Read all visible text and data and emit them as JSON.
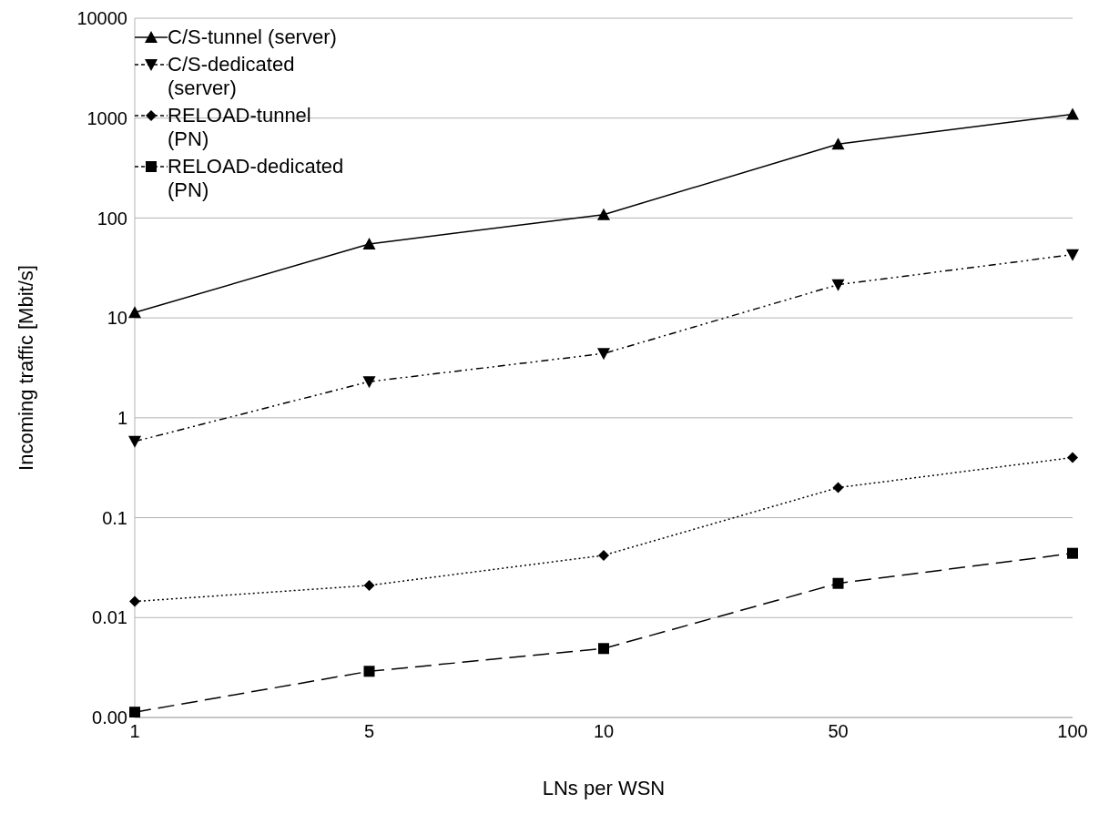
{
  "chart_data": {
    "type": "line",
    "xlabel": "LNs per WSN",
    "ylabel": "Incoming traffic [Mbit/s]",
    "categories": [
      "1",
      "5",
      "10",
      "50",
      "100"
    ],
    "series": [
      {
        "name": "C/S-tunnel (server)",
        "color": "#000000",
        "marker": "triangle",
        "line_style": "solid",
        "values": [
          11.3,
          55,
          108,
          550,
          1090
        ]
      },
      {
        "name": "C/S-dedicated (server)",
        "color": "#000000",
        "marker": "triangle-down",
        "line_style": "dashdotdot",
        "values": [
          0.58,
          2.3,
          4.4,
          21.5,
          43
        ]
      },
      {
        "name": "RELOAD-tunnel (PN)",
        "color": "#000000",
        "marker": "diamond",
        "line_style": "dotted",
        "values": [
          0.0145,
          0.021,
          0.042,
          0.2,
          0.4
        ]
      },
      {
        "name": "RELOAD-dedicated (PN)",
        "color": "#000000",
        "marker": "square",
        "line_style": "dashed",
        "values": [
          0.00113,
          0.0029,
          0.0049,
          0.022,
          0.044
        ]
      }
    ],
    "log": "y",
    "ylim": [
      0.001,
      10000
    ],
    "yticks": [
      {
        "value": 0.001,
        "label": "0.00"
      },
      0.01,
      0.1,
      1,
      10,
      100,
      1000,
      10000
    ],
    "grid": "y",
    "legend": "top left"
  }
}
